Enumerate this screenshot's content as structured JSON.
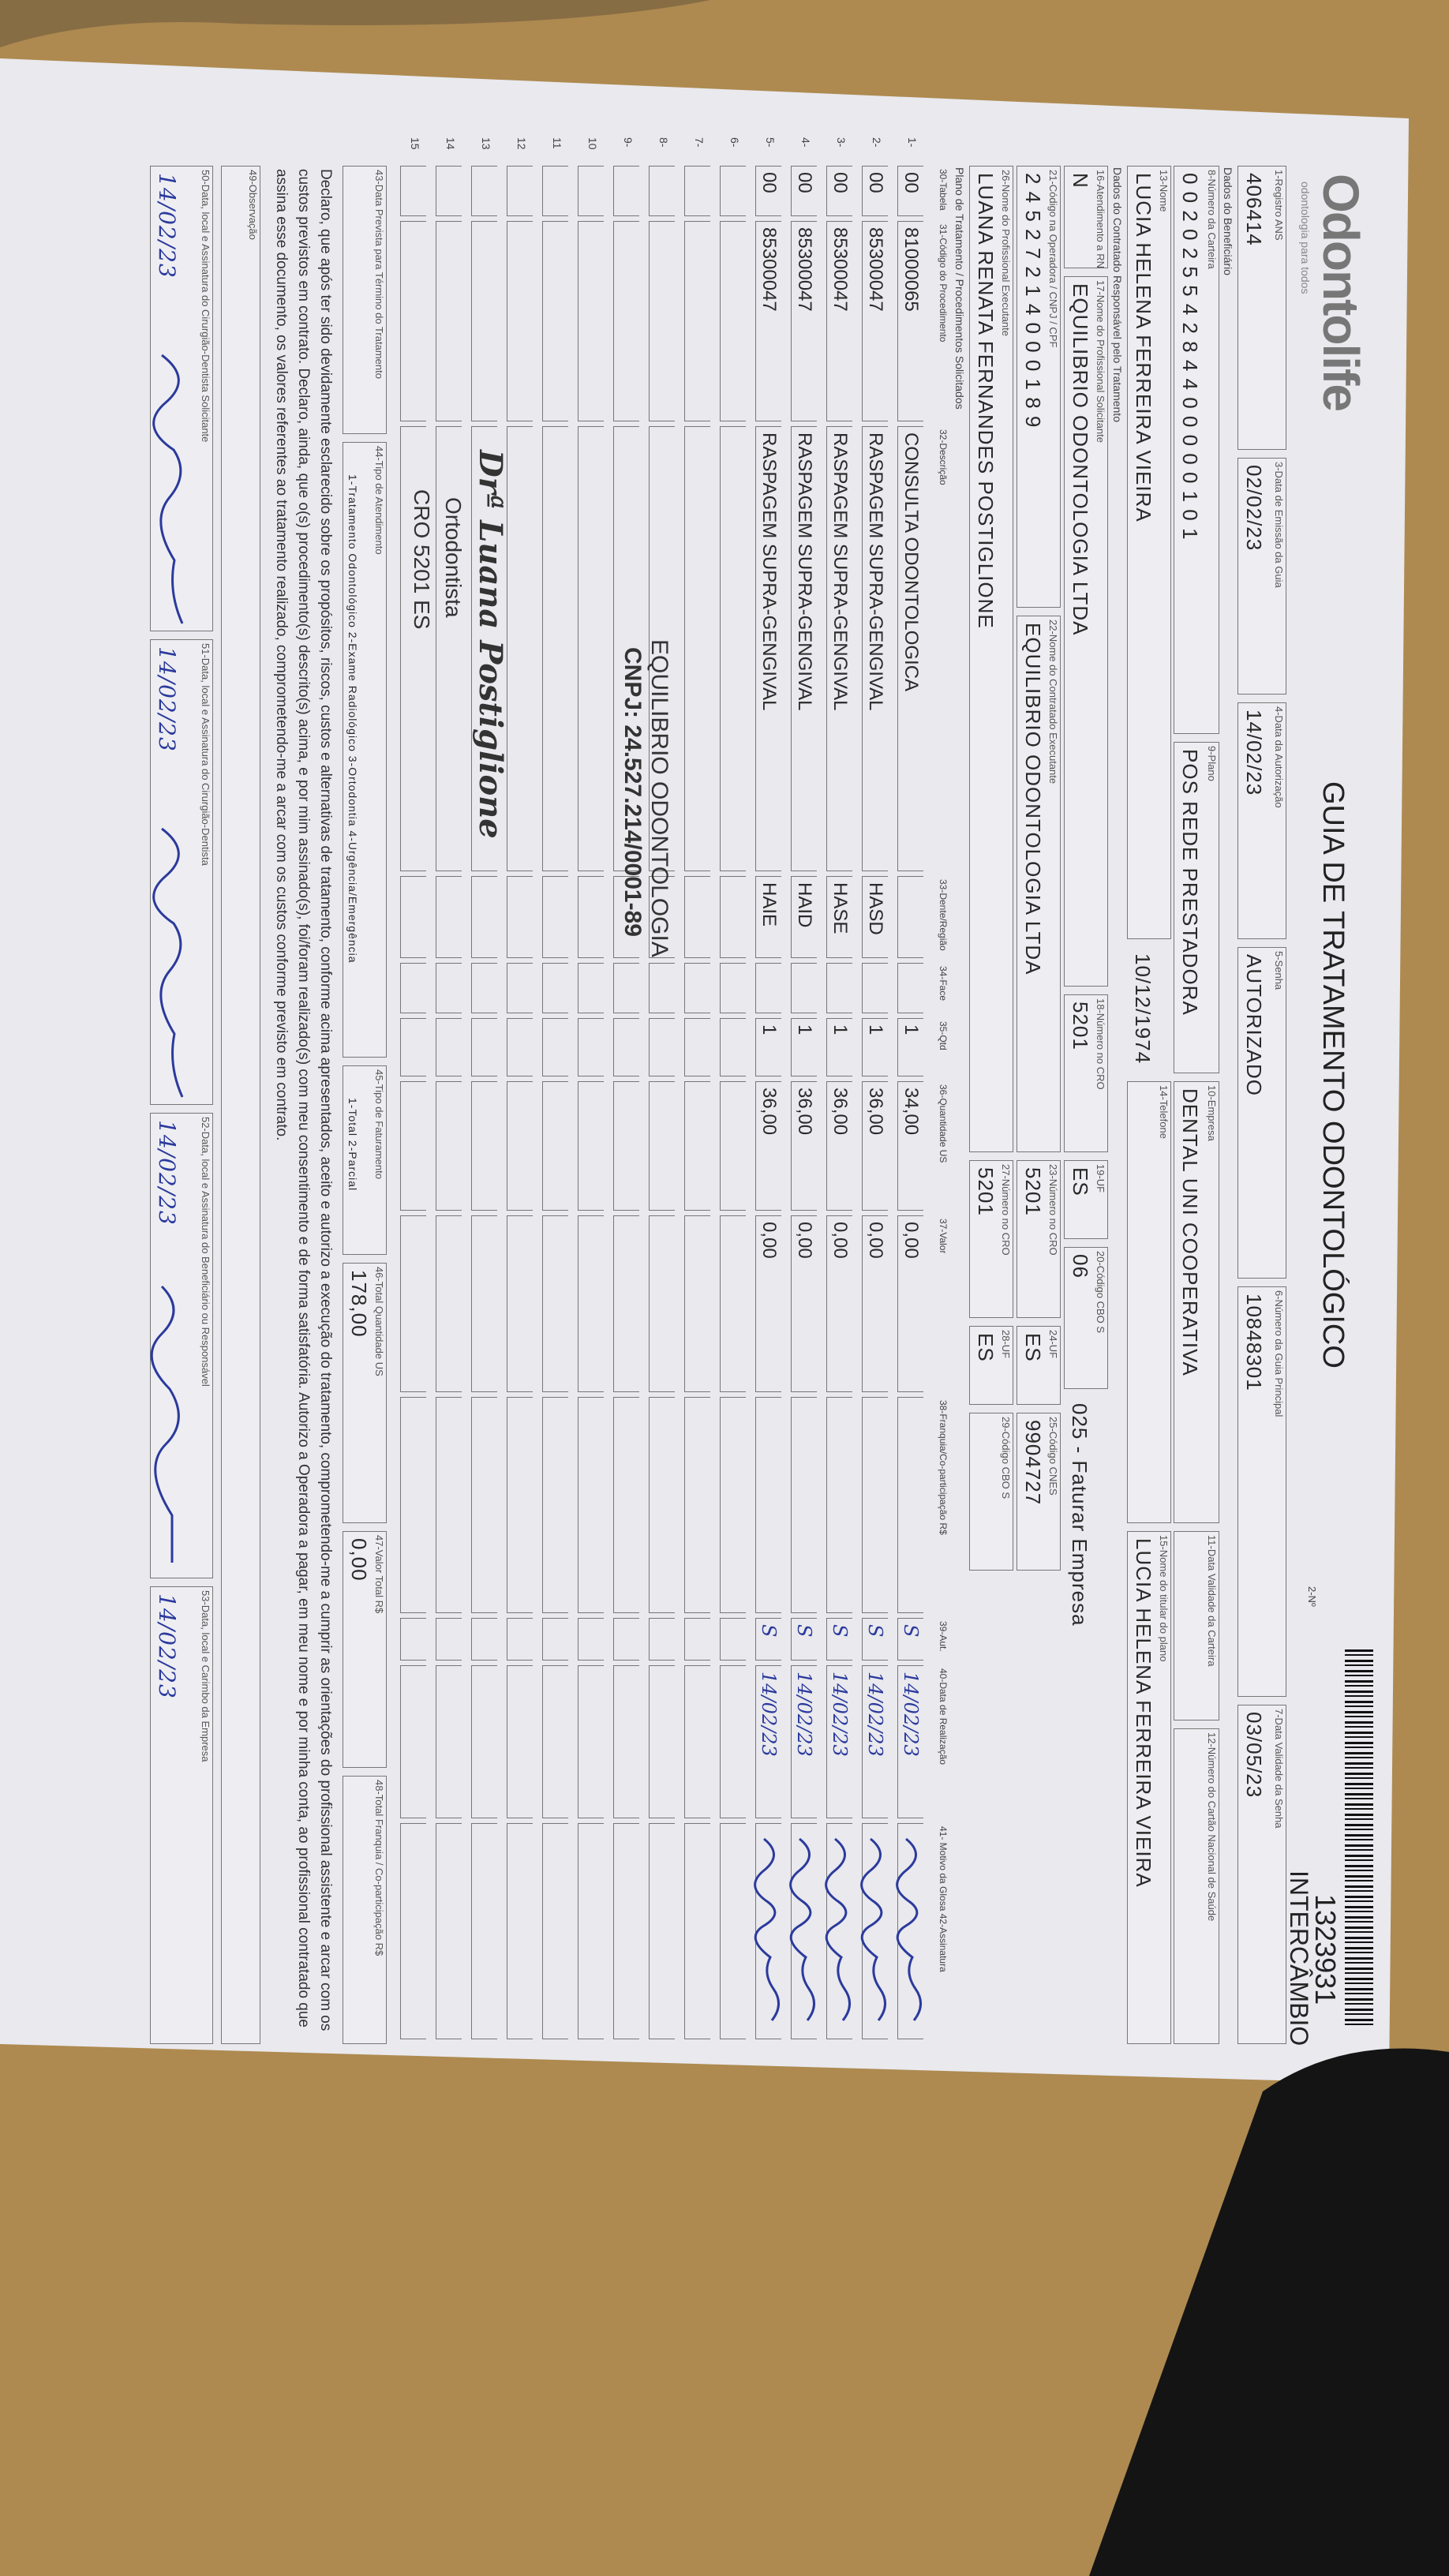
{
  "header": {
    "logo": "Odontolife",
    "logo_tagline": "odontologia para todos",
    "title": "GUIA DE TRATAMENTO ODONTOLÓGICO",
    "page_label": "2-Nº",
    "guide_number": "1323931",
    "guide_type": "INTERCÂMBIO"
  },
  "sections": {
    "beneficiary": "Dados do Beneficiário",
    "contractor": "Dados do Contratado Responsável pelo Tratamento",
    "plan": "Plano de Tratamento / Procedimentos Solicitados"
  },
  "fields": {
    "registro_ans": {
      "label": "1-Registro ANS",
      "value": "406414"
    },
    "emissao": {
      "label": "3-Data de Emissão da Guia",
      "value": "02/02/23"
    },
    "autorizacao": {
      "label": "4-Data da Autorização",
      "value": "14/02/23"
    },
    "senha": {
      "label": "5-Senha",
      "value": "AUTORIZADO"
    },
    "guia_principal": {
      "label": "6-Número da Guia Principal",
      "value": "10848301"
    },
    "validade_senha": {
      "label": "7-Data Validade da Senha",
      "value": "03/05/23"
    },
    "carteira": {
      "label": "8-Número da Carteira",
      "value": "0 0 2 0 2 5 5 4 2 8 4 4 0 0 0 0 0 1 0 1"
    },
    "plano": {
      "label": "9-Plano",
      "value": "POS REDE PRESTADORA"
    },
    "empresa": {
      "label": "10-Empresa",
      "value": "DENTAL UNI COOPERATIVA"
    },
    "validade_carteira": {
      "label": "11-Data Validade da Carteira"
    },
    "cns": {
      "label": "12-Número do Cartão Nacional de Saúde"
    },
    "nome": {
      "label": "13-Nome",
      "value": "LUCIA HELENA FERREIRA VIEIRA"
    },
    "nascimento": {
      "value": "10/12/1974"
    },
    "telefone": {
      "label": "14-Telefone"
    },
    "titular": {
      "label": "15-Nome do titular do plano",
      "value": "LUCIA HELENA FERREIRA VIEIRA"
    },
    "rn": {
      "label": "16-Atendimento a RN",
      "value": "N"
    },
    "solicitante": {
      "label": "17-Nome do Profissional Solicitante",
      "value": "EQUILIBRIO ODONTOLOGIA LTDA"
    },
    "cro18": {
      "label": "18-Número no CRO",
      "value": "5201"
    },
    "uf19": {
      "label": "19-UF",
      "value": "ES"
    },
    "cbo20": {
      "label": "20-Código CBO S",
      "value": "06"
    },
    "faturar": {
      "value": "025 - Faturar Empresa"
    },
    "cnpj": {
      "label": "21-Código na Operadora / CNPJ / CPF",
      "value": "2 4 5 2 7 2 1 4 0 0 0 1 8 9"
    },
    "executante": {
      "label": "22-Nome do Contratado Executante",
      "value": "EQUILIBRIO ODONTOLOGIA LTDA"
    },
    "cro23": {
      "label": "23-Número no CRO",
      "value": "5201"
    },
    "uf24": {
      "label": "24-UF",
      "value": "ES"
    },
    "cnes": {
      "label": "25-Código CNES",
      "value": "9904727"
    },
    "profissional": {
      "label": "26-Nome do Profissional Executante",
      "value": "LUANA RENATA FERNANDES POSTIGLIONE"
    },
    "cro27": {
      "label": "27-Número no CRO",
      "value": "5201"
    },
    "uf28": {
      "label": "28-UF",
      "value": "ES"
    },
    "cbo29": {
      "label": "29-Código CBO S"
    },
    "prevista": {
      "label": "43-Data Prevista para Término do Tratamento"
    },
    "tipo_atendimento": {
      "label": "44-Tipo de Atendimento",
      "value": "1-Tratamento Odontológico 2-Exame Radiológico 3-Ortodontia 4-Urgência/Emergência"
    },
    "tipo_faturamento": {
      "label": "45-Tipo de Faturamento",
      "value": "1-Total 2-Parcial"
    },
    "total_us": {
      "label": "46-Total Quantidade US",
      "value": "178,00"
    },
    "valor_total": {
      "label": "47-Valor Total R$",
      "value": "0,00"
    },
    "total_franquia": {
      "label": "48-Total Franquia / Co-participação R$"
    },
    "observacao": {
      "label": "49-Observação"
    },
    "sig50": {
      "label": "50-Data, local e Assinatura do Cirurgião-Dentista Solicitante",
      "value": "14/02/23"
    },
    "sig51": {
      "label": "51-Data, local e Assinatura do Cirurgião-Dentista",
      "value": "14/02/23"
    },
    "sig52": {
      "label": "52-Data, local e Assinatura do Beneficiário ou Responsável",
      "value": "14/02/23"
    },
    "sig53": {
      "label": "53-Data, local e Carimbo da Empresa",
      "value": "14/02/23"
    }
  },
  "table": {
    "columns": {
      "table": "30-Tabela",
      "code": "31-Código do Procedimento",
      "description": "32-Descrição",
      "region": "33-Dente/Região",
      "face": "34-Face",
      "qty": "35-Qtd",
      "us": "36-Quantidade US",
      "value": "37-Valor",
      "franchise": "38-Franquia/Co-participação R$",
      "aut": "39-Aut.",
      "date": "40-Data de Realização",
      "signature": "41- Motivo da Glosa 42-Assinatura"
    },
    "row_numbers": [
      "1-",
      "2-",
      "3-",
      "4-",
      "5-",
      "6-",
      "7-",
      "8-",
      "9-",
      "10",
      "11",
      "12",
      "13",
      "14",
      "15"
    ],
    "rows": [
      {
        "table": "00",
        "code": "81000065",
        "description": "CONSULTA ODONTOLOGICA",
        "qty": "1",
        "us": "34,00",
        "value": "0,00",
        "aut": "S",
        "date": "14/02/23"
      },
      {
        "table": "00",
        "code": "85300047",
        "description": "RASPAGEM SUPRA-GENGIVAL",
        "region": "HASD",
        "qty": "1",
        "us": "36,00",
        "value": "0,00",
        "aut": "S",
        "date": "14/02/23"
      },
      {
        "table": "00",
        "code": "85300047",
        "description": "RASPAGEM SUPRA-GENGIVAL",
        "region": "HASE",
        "qty": "1",
        "us": "36,00",
        "value": "0,00",
        "aut": "S",
        "date": "14/02/23"
      },
      {
        "table": "00",
        "code": "85300047",
        "description": "RASPAGEM SUPRA-GENGIVAL",
        "region": "HAID",
        "qty": "1",
        "us": "36,00",
        "value": "0,00",
        "aut": "S",
        "date": "14/02/23"
      },
      {
        "table": "00",
        "code": "85300047",
        "description": "RASPAGEM SUPRA-GENGIVAL",
        "region": "HAIE",
        "qty": "1",
        "us": "36,00",
        "value": "0,00",
        "aut": "S",
        "date": "14/02/23"
      }
    ]
  },
  "stamps": {
    "company": "EQUILIBRIO ODONTOLOGIA",
    "cnpj": "CNPJ: 24.527.214/0001-89",
    "dentist": "Drª Luana Postiglione",
    "specialty": "Ortodontista",
    "cro": "CRO 5201 ES"
  },
  "declaration": "Declaro, que após ter sido devidamente esclarecido sobre os propósitos, riscos, custos e alternativas de tratamento, conforme acima apresentados, aceito e autorizo a execução do tratamento, comprometendo-me a cumprir as orientações do profissional assistente e arcar com os custos previstos em contrato. Declaro, ainda, que o(s) procedimento(s) descrito(s) acima, e por mim assinado(s), foi/foram realizado(s) com meu consentimento e de forma satisfatória. Autorizo a Operadora a pagar, em meu nome e por minha conta, ao profissional contratado que assina esse documento, os valores referentes ao tratamento realizado, comprometendo-me a arcar com os custos conforme previsto em contrato."
}
